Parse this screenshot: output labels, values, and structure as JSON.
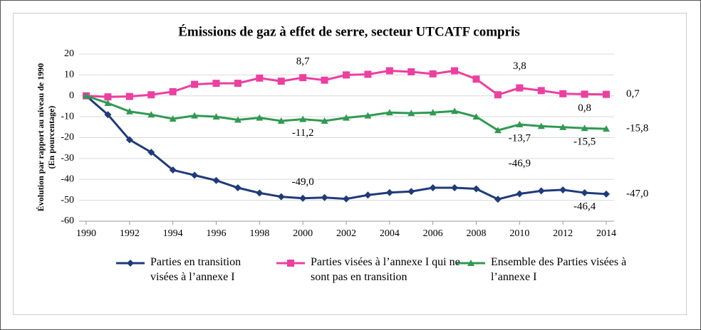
{
  "chart_data": {
    "type": "line",
    "title": "Émissions de gaz à effet de serre, secteur UTCATF compris",
    "y_label": "Évolution par rapport au niveau de 1990",
    "y_sublabel": "(En pourcentage)",
    "x": [
      1990,
      1991,
      1992,
      1993,
      1994,
      1995,
      1996,
      1997,
      1998,
      1999,
      2000,
      2001,
      2002,
      2003,
      2004,
      2005,
      2006,
      2007,
      2008,
      2009,
      2010,
      2011,
      2012,
      2013,
      2014
    ],
    "xlim": [
      1990,
      2014
    ],
    "xticks": [
      1990,
      1992,
      1994,
      1996,
      1998,
      2000,
      2002,
      2004,
      2006,
      2008,
      2010,
      2012,
      2014
    ],
    "ylim": [
      -60,
      20
    ],
    "yticks": [
      -60,
      -50,
      -40,
      -30,
      -20,
      -10,
      0,
      10,
      20
    ],
    "grid": true,
    "series": [
      {
        "name": "Parties en transition visées à l’annexe I",
        "color": "#1f3b7a",
        "marker": "diamond",
        "values": [
          0,
          -9,
          -21,
          -27,
          -35.5,
          -38,
          -40.5,
          -44,
          -46.5,
          -48.3,
          -49.0,
          -48.7,
          -49.3,
          -47.5,
          -46.3,
          -45.8,
          -44,
          -44,
          -44.5,
          -49.5,
          -46.9,
          -45.5,
          -45,
          -46.4,
          -47.0
        ],
        "value_labels": [
          null,
          null,
          null,
          null,
          null,
          null,
          null,
          null,
          null,
          null,
          "-49,0",
          null,
          null,
          null,
          null,
          null,
          null,
          null,
          null,
          null,
          "-46,9",
          null,
          null,
          "-46,4",
          "-47,0"
        ]
      },
      {
        "name": "Parties visées à l’annexe I qui ne sont pas en transition",
        "color": "#ec3fa0",
        "marker": "square",
        "values": [
          0,
          -0.5,
          -0.3,
          0.5,
          2,
          5.5,
          6,
          6,
          8.5,
          7,
          8.7,
          7.5,
          10,
          10.3,
          12,
          11.5,
          10.5,
          12,
          8,
          0.5,
          3.8,
          2.5,
          1,
          0.8,
          0.7
        ],
        "value_labels": [
          null,
          null,
          null,
          null,
          null,
          null,
          null,
          null,
          null,
          null,
          "8,7",
          null,
          null,
          null,
          null,
          null,
          null,
          null,
          null,
          null,
          "3,8",
          null,
          null,
          "0,8",
          "0,7"
        ]
      },
      {
        "name": "Ensemble des Parties visées à l’annexe I",
        "color": "#2f9a52",
        "marker": "triangle",
        "values": [
          0,
          -3.5,
          -7.5,
          -9,
          -11,
          -9.5,
          -10,
          -11.5,
          -10.5,
          -12,
          -11.2,
          -12,
          -10.5,
          -9.5,
          -8,
          -8.3,
          -8,
          -7.3,
          -10,
          -16.5,
          -13.7,
          -14.5,
          -15,
          -15.5,
          -15.8
        ],
        "value_labels": [
          null,
          null,
          null,
          null,
          null,
          null,
          null,
          null,
          null,
          null,
          "-11,2",
          null,
          null,
          null,
          null,
          null,
          null,
          null,
          null,
          null,
          "-13,7",
          null,
          null,
          "-15,5",
          "-15,8"
        ]
      }
    ]
  }
}
